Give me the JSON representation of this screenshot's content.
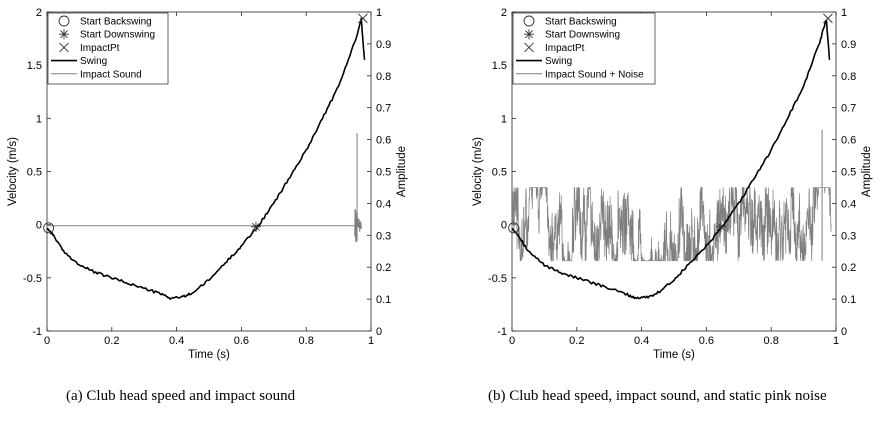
{
  "chart_data": [
    {
      "type": "line",
      "panel": "a",
      "caption": "(a) Club head speed and impact sound",
      "xlabel": "Time (s)",
      "ylabel": "Velocity (m/s)",
      "y2label": "Amplitude",
      "xlim": [
        0,
        1
      ],
      "ylim": [
        -1,
        2
      ],
      "y2lim": [
        0,
        1
      ],
      "xticks": [
        "0",
        "0.2",
        "0.4",
        "0.6",
        "0.8",
        "1"
      ],
      "yticks": [
        "-1",
        "-0.5",
        "0",
        "0.5",
        "1",
        "1.5",
        "2"
      ],
      "y2ticks": [
        "0",
        "0.1",
        "0.2",
        "0.3",
        "0.4",
        "0.5",
        "0.6",
        "0.7",
        "0.8",
        "0.9",
        "1"
      ],
      "grid": false,
      "legend_position": "top-left",
      "legend": [
        "Start Backswing",
        "Start Downswing",
        "ImpactPt",
        "Swing",
        "Impact Sound"
      ],
      "swing": {
        "x": [
          0,
          0.02,
          0.05,
          0.1,
          0.15,
          0.2,
          0.25,
          0.3,
          0.35,
          0.38,
          0.42,
          0.45,
          0.5,
          0.55,
          0.6,
          0.65,
          0.7,
          0.75,
          0.8,
          0.85,
          0.9,
          0.95,
          0.97,
          0.98
        ],
        "y": [
          -0.03,
          -0.1,
          -0.25,
          -0.38,
          -0.45,
          -0.5,
          -0.55,
          -0.6,
          -0.65,
          -0.69,
          -0.68,
          -0.64,
          -0.52,
          -0.36,
          -0.2,
          -0.02,
          0.2,
          0.45,
          0.7,
          1.0,
          1.3,
          1.72,
          1.93,
          1.55
        ]
      },
      "markers": {
        "start_backswing": {
          "x": 0.005,
          "y": -0.03
        },
        "start_downswing": {
          "x": 0.645,
          "y": -0.02
        },
        "impact": {
          "x": 0.975,
          "y": 1.94
        }
      },
      "impact_sound": {
        "baseline": 0.33,
        "burst_x": 0.96,
        "burst_min": 0.28,
        "burst_max": 0.41,
        "spike_x": 0.957,
        "spike_max": 0.62
      }
    },
    {
      "type": "line",
      "panel": "b",
      "caption": "(b) Club head speed, impact sound, and static pink noise",
      "xlabel": "Time (s)",
      "ylabel": "Velocity (m/s)",
      "y2label": "Amplitude",
      "xlim": [
        0,
        1
      ],
      "ylim": [
        -1,
        2
      ],
      "y2lim": [
        0,
        1
      ],
      "xticks": [
        "0",
        "0.2",
        "0.4",
        "0.6",
        "0.8",
        "1"
      ],
      "yticks": [
        "-1",
        "-0.5",
        "0",
        "0.5",
        "1",
        "1.5",
        "2"
      ],
      "y2ticks": [
        "0",
        "0.1",
        "0.2",
        "0.3",
        "0.4",
        "0.5",
        "0.6",
        "0.7",
        "0.8",
        "0.9",
        "1"
      ],
      "grid": false,
      "legend_position": "top-left",
      "legend": [
        "Start Backswing",
        "Start Downswing",
        "ImpactPt",
        "Swing",
        "Impact Sound + Noise"
      ],
      "swing": {
        "x": [
          0,
          0.02,
          0.05,
          0.1,
          0.15,
          0.2,
          0.25,
          0.3,
          0.35,
          0.38,
          0.42,
          0.45,
          0.5,
          0.55,
          0.6,
          0.65,
          0.7,
          0.75,
          0.8,
          0.85,
          0.9,
          0.95,
          0.97,
          0.98
        ],
        "y": [
          -0.03,
          -0.1,
          -0.25,
          -0.38,
          -0.45,
          -0.5,
          -0.55,
          -0.6,
          -0.65,
          -0.69,
          -0.68,
          -0.64,
          -0.52,
          -0.36,
          -0.2,
          -0.02,
          0.2,
          0.45,
          0.7,
          1.0,
          1.3,
          1.72,
          1.93,
          1.55
        ]
      },
      "markers": {
        "start_backswing": {
          "x": 0.005,
          "y": -0.03
        },
        "start_downswing": {
          "x": 0.645,
          "y": -0.02
        },
        "impact": {
          "x": 0.975,
          "y": 1.94
        }
      },
      "impact_sound": {
        "baseline": 0.35,
        "noise_min": 0.22,
        "noise_max": 0.45,
        "spike_x": 0.957,
        "spike_max": 0.63
      }
    }
  ],
  "colors": {
    "swing": "#000000",
    "sound": "#7f7f7f",
    "axes": "#262626"
  }
}
